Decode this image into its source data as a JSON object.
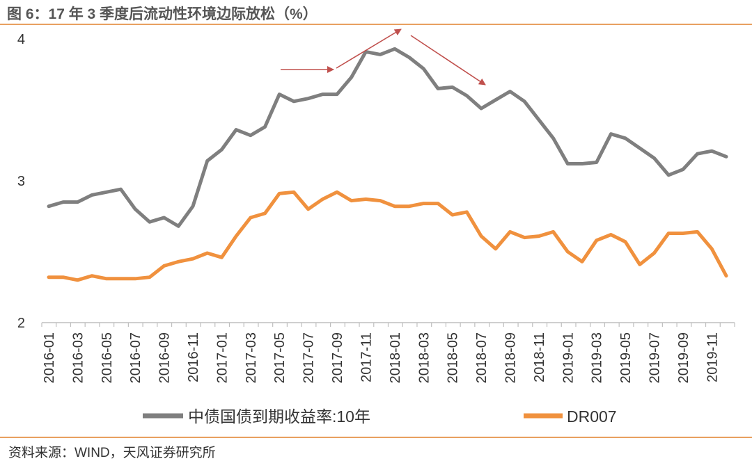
{
  "header": {
    "title": "图 6：17 年 3 季度后流动性环境边际放松（%）"
  },
  "footer": {
    "source": "资料来源：WIND，天风证券研究所"
  },
  "chart_data": {
    "type": "line",
    "title": "图 6：17 年 3 季度后流动性环境边际放松（%）",
    "xlabel": "",
    "ylabel": "",
    "ylim": [
      2,
      4
    ],
    "yticks": [
      "2",
      "3",
      "4"
    ],
    "grid": false,
    "legend_position": "bottom",
    "x": [
      "2016-01",
      "2016-02",
      "2016-03",
      "2016-04",
      "2016-05",
      "2016-06",
      "2016-07",
      "2016-08",
      "2016-09",
      "2016-10",
      "2016-11",
      "2016-12",
      "2017-01",
      "2017-02",
      "2017-03",
      "2017-04",
      "2017-05",
      "2017-06",
      "2017-07",
      "2017-08",
      "2017-09",
      "2017-10",
      "2017-11",
      "2017-12",
      "2018-01",
      "2018-02",
      "2018-03",
      "2018-04",
      "2018-05",
      "2018-06",
      "2018-07",
      "2018-08",
      "2018-09",
      "2018-10",
      "2018-11",
      "2018-12",
      "2019-01",
      "2019-02",
      "2019-03",
      "2019-04",
      "2019-05",
      "2019-06",
      "2019-07",
      "2019-08",
      "2019-09",
      "2019-10",
      "2019-11",
      "2019-12"
    ],
    "x_tick_labels": [
      "2016-01",
      "2016-03",
      "2016-05",
      "2016-07",
      "2016-09",
      "2016-11",
      "2017-01",
      "2017-03",
      "2017-05",
      "2017-07",
      "2017-09",
      "2017-11",
      "2018-01",
      "2018-03",
      "2018-05",
      "2018-07",
      "2018-09",
      "2018-11",
      "2019-01",
      "2019-03",
      "2019-05",
      "2019-07",
      "2019-09",
      "2019-11"
    ],
    "series": [
      {
        "name": "中债国债到期收益率:10年",
        "color": "#7F7F7F",
        "values": [
          2.82,
          2.85,
          2.85,
          2.9,
          2.92,
          2.94,
          2.8,
          2.71,
          2.74,
          2.68,
          2.82,
          3.14,
          3.22,
          3.36,
          3.32,
          3.38,
          3.61,
          3.56,
          3.58,
          3.61,
          3.61,
          3.73,
          3.91,
          3.89,
          3.93,
          3.87,
          3.79,
          3.65,
          3.66,
          3.6,
          3.51,
          3.57,
          3.63,
          3.56,
          3.43,
          3.3,
          3.12,
          3.12,
          3.13,
          3.33,
          3.3,
          3.23,
          3.16,
          3.04,
          3.08,
          3.19,
          3.21,
          3.17
        ]
      },
      {
        "name": "DR007",
        "color": "#F0913E",
        "values": [
          2.32,
          2.32,
          2.3,
          2.33,
          2.31,
          2.31,
          2.31,
          2.32,
          2.4,
          2.43,
          2.45,
          2.49,
          2.46,
          2.61,
          2.74,
          2.77,
          2.91,
          2.92,
          2.8,
          2.87,
          2.92,
          2.86,
          2.87,
          2.86,
          2.82,
          2.82,
          2.84,
          2.84,
          2.76,
          2.78,
          2.61,
          2.52,
          2.64,
          2.6,
          2.61,
          2.64,
          2.5,
          2.43,
          2.58,
          2.62,
          2.57,
          2.41,
          2.49,
          2.63,
          2.63,
          2.64,
          2.52,
          2.33
        ]
      }
    ],
    "annotations": [
      {
        "type": "arrow",
        "color": "#C0504D"
      },
      {
        "type": "arrow",
        "color": "#C0504D"
      },
      {
        "type": "arrow",
        "color": "#C0504D"
      }
    ]
  }
}
